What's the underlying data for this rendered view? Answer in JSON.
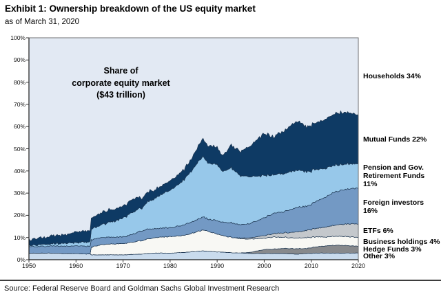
{
  "header": {
    "title": "Exhibit 1: Ownership breakdown of the US equity market",
    "subtitle": "as of March 31, 2020"
  },
  "source": "Source: Federal Reserve Board and Goldman Sachs Global Investment Research",
  "chart_data": {
    "type": "area",
    "stacked": true,
    "title": "Share of\ncorporate equity market\n($43 trillion)",
    "annotation": "Share of\ncorporate equity market\n($43 trillion)",
    "xlabel": "",
    "ylabel": "",
    "xlim": [
      1950,
      2020
    ],
    "ylim": [
      0,
      100
    ],
    "x_ticks": [
      "1950",
      "1960",
      "1970",
      "1980",
      "1990",
      "2000",
      "2010",
      "2020"
    ],
    "y_ticks": [
      "0%",
      "10%",
      "20%",
      "30%",
      "40%",
      "50%",
      "60%",
      "70%",
      "80%",
      "90%",
      "100%"
    ],
    "grid": false,
    "legend_position": "right",
    "units": "% share of corporate equity market",
    "x": [
      1950,
      1952,
      1955,
      1958,
      1960,
      1962,
      1963,
      1963.2,
      1965,
      1968,
      1970,
      1972,
      1973,
      1974,
      1975,
      1977,
      1980,
      1982,
      1984,
      1986,
      1987,
      1988,
      1990,
      1991,
      1993,
      1995,
      1997,
      2000,
      2002,
      2004,
      2007,
      2009,
      2011,
      2013,
      2015,
      2017,
      2019,
      2020
    ],
    "series": [
      {
        "name": "other",
        "label": "Other 3%",
        "share_2020": 3,
        "color": "#c9dbed",
        "values": [
          3,
          3,
          3,
          2.8,
          2.8,
          2.6,
          2.6,
          2.2,
          2.2,
          2.2,
          2.2,
          2.4,
          2.5,
          2.5,
          2.8,
          3,
          3,
          3.2,
          3.5,
          3.8,
          4,
          3.8,
          3.5,
          3.4,
          3.2,
          3,
          2.8,
          2.8,
          2.8,
          2.8,
          2.5,
          2.8,
          3,
          3,
          3,
          3,
          3,
          3
        ]
      },
      {
        "name": "hedge_funds",
        "label": "Hedge Funds 3%",
        "share_2020": 3,
        "color": "#87898c",
        "values": [
          0,
          0,
          0,
          0,
          0,
          0,
          0,
          0,
          0,
          0,
          0,
          0,
          0,
          0,
          0,
          0,
          0,
          0,
          0,
          0,
          0,
          0,
          0,
          0,
          0,
          0,
          0.5,
          1.8,
          2,
          2.2,
          2.5,
          2.2,
          2.8,
          3.2,
          3.5,
          3.5,
          3.2,
          3
        ]
      },
      {
        "name": "business_holdings",
        "label": "Business holdings 4%",
        "share_2020": 4,
        "color": "#f8f8f4",
        "values": [
          0,
          0,
          0,
          0,
          0,
          0,
          0,
          3.5,
          4.5,
          5,
          5,
          5.5,
          6,
          6,
          6.5,
          7,
          7.5,
          7.5,
          8,
          9,
          9.5,
          9,
          8,
          7.5,
          7,
          6.5,
          6,
          5,
          5.5,
          5,
          4.8,
          5,
          4.5,
          4,
          4,
          4,
          4,
          4
        ]
      },
      {
        "name": "etfs",
        "label": "ETFs 6%",
        "share_2020": 6,
        "color": "#c4c8cc",
        "values": [
          0,
          0,
          0,
          0,
          0,
          0,
          0,
          0,
          0,
          0,
          0,
          0,
          0,
          0,
          0,
          0,
          0,
          0,
          0,
          0,
          0,
          0,
          0,
          0,
          0,
          0.2,
          0.6,
          1.2,
          1.5,
          2,
          2.8,
          3.2,
          3.8,
          4.5,
          5,
          5.5,
          6,
          6
        ]
      },
      {
        "name": "foreign_investors",
        "label": "Foreign investors 16%",
        "share_2020": 16,
        "color": "#7399c4",
        "values": [
          3,
          3,
          3.2,
          3.3,
          3.5,
          3.5,
          3.5,
          3.2,
          3.2,
          3,
          3,
          3.5,
          4,
          4.5,
          4.5,
          4,
          4,
          4.5,
          5,
          5.5,
          6,
          5.5,
          6,
          6,
          6.5,
          6,
          6.5,
          8,
          9,
          9.5,
          11,
          11,
          12,
          13.5,
          15,
          15.5,
          16,
          16
        ]
      },
      {
        "name": "pension_gov_retirement",
        "label": "Pension and Gov. Retirement Funds 11%",
        "share_2020": 11,
        "color": "#97c8ea",
        "values": [
          0.5,
          0.8,
          1,
          1.3,
          1.5,
          1.8,
          2,
          4.5,
          5.5,
          7,
          8.5,
          10,
          10.5,
          10,
          12,
          14,
          17,
          19,
          22,
          26,
          27.5,
          25.5,
          25.5,
          23,
          24.5,
          22,
          21,
          19,
          17.5,
          17,
          17,
          15.5,
          14.5,
          13,
          12,
          11.5,
          11,
          11
        ]
      },
      {
        "name": "mutual_funds",
        "label": "Mutual Funds 22%",
        "share_2020": 22,
        "color": "#0e3a64",
        "values": [
          2.5,
          3,
          3.5,
          4,
          4.5,
          5,
          5,
          5,
          5.5,
          5.5,
          5.5,
          6,
          5.5,
          4.5,
          4.5,
          4,
          4,
          4.5,
          5,
          7,
          8,
          7.5,
          8,
          7,
          10,
          11,
          14,
          19,
          17,
          19,
          22,
          20,
          21,
          22,
          23.5,
          23.5,
          22.5,
          22
        ]
      },
      {
        "name": "households",
        "label": "Households 34%",
        "share_2020": 34,
        "color": "#e2e9f3",
        "remainder": true,
        "values": null
      }
    ],
    "colors": {
      "outline": "#1c3550",
      "axis_box": "#6d6f72",
      "axis_line": "#1a1a1a",
      "tick": "#333333"
    }
  }
}
